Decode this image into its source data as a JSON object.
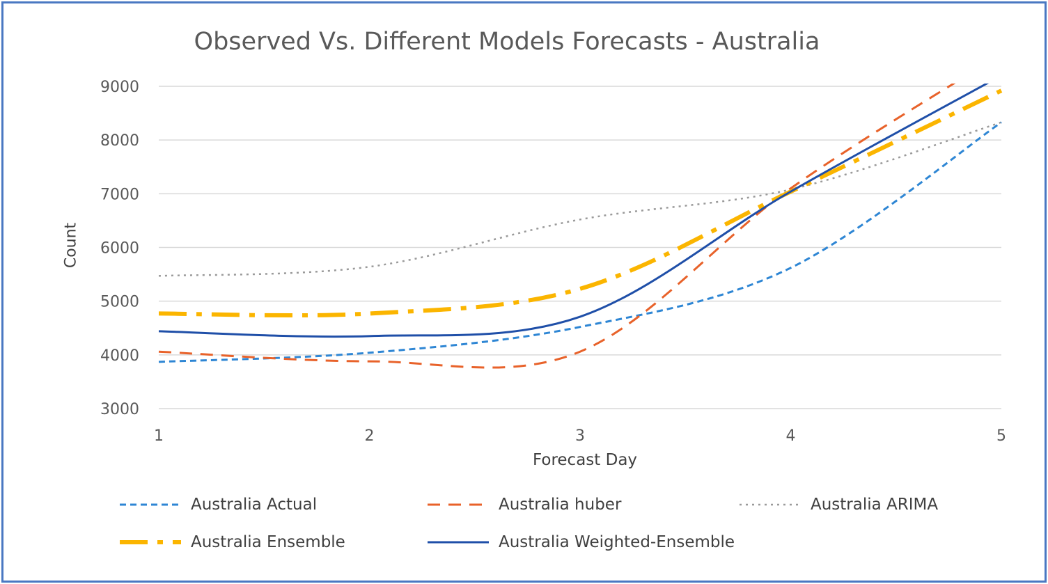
{
  "chart_data": {
    "type": "line",
    "title": "Observed Vs. Different Models Forecasts - Australia",
    "xlabel": "Forecast Day",
    "ylabel": "Count",
    "x": [
      1,
      2,
      3,
      4,
      5
    ],
    "xlim": [
      1,
      5
    ],
    "ylim": [
      3000,
      9000
    ],
    "xticks": [
      "1",
      "2",
      "3",
      "4",
      "5"
    ],
    "yticks": [
      "3000",
      "4000",
      "5000",
      "6000",
      "7000",
      "8000",
      "9000"
    ],
    "grid": true,
    "legend_position": "bottom",
    "smoothed": true,
    "series": [
      {
        "name": "Australia Actual",
        "values": [
          3870,
          4040,
          4520,
          5620,
          8330
        ],
        "color": "#2e86d4",
        "style": "dashed"
      },
      {
        "name": "Australia huber",
        "values": [
          4060,
          3880,
          4060,
          7100,
          9600
        ],
        "color": "#e8622a",
        "style": "long-dashed"
      },
      {
        "name": "Australia ARIMA",
        "values": [
          5470,
          5640,
          6520,
          7080,
          8330
        ],
        "color": "#9a9a9a",
        "style": "dotted"
      },
      {
        "name": "Australia Ensemble",
        "values": [
          4770,
          4770,
          5230,
          7040,
          8920
        ],
        "color": "#fbb500",
        "style": "dash-dot"
      },
      {
        "name": "Australia Weighted-Ensemble",
        "values": [
          4440,
          4350,
          4710,
          7040,
          9200
        ],
        "color": "#1f4fa8",
        "style": "solid"
      }
    ]
  }
}
